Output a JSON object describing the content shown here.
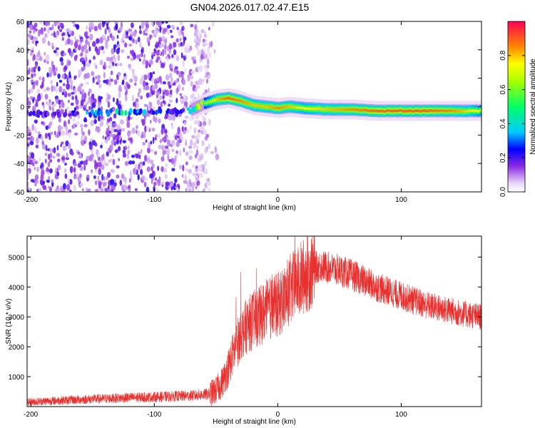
{
  "title": "GN04.2026.017.02.47.E15",
  "chart_data": [
    {
      "type": "heatmap",
      "name": "spectrogram",
      "xlabel": "Height of straight line (km)",
      "ylabel": "Frequency (Hz)",
      "xlim": [
        -203,
        165
      ],
      "ylim": [
        -60,
        60
      ],
      "xticks": [
        -200,
        -100,
        0,
        100
      ],
      "yticks": [
        -60,
        -40,
        -20,
        0,
        20,
        40,
        60
      ],
      "colorbar": {
        "label": "Normalized spectral amplitude",
        "range": [
          0,
          1
        ],
        "ticks": [
          0.0,
          0.2,
          0.4,
          0.6,
          0.8
        ]
      },
      "noise_region_x": [
        -203,
        -55
      ],
      "ridge": {
        "x": [
          -200,
          -180,
          -160,
          -140,
          -120,
          -100,
          -90,
          -80,
          -70,
          -60,
          -50,
          -40,
          -30,
          -20,
          -10,
          0,
          10,
          20,
          40,
          60,
          80,
          100,
          120,
          140,
          160,
          165
        ],
        "freq": [
          -5,
          -5,
          -5,
          -4,
          -4,
          -3,
          -3,
          -3,
          -2,
          2,
          5,
          6,
          4,
          1,
          0,
          -1,
          0,
          -1,
          -2,
          -2,
          -3,
          -3,
          -3,
          -3,
          -3,
          -3
        ],
        "amplitude": [
          0.15,
          0.15,
          0.2,
          0.3,
          0.3,
          0.2,
          0.2,
          0.15,
          0.3,
          0.6,
          0.8,
          0.9,
          0.85,
          0.8,
          0.8,
          0.85,
          0.8,
          0.75,
          0.8,
          0.85,
          0.9,
          0.9,
          0.9,
          0.85,
          0.75,
          0.7
        ]
      }
    },
    {
      "type": "line",
      "name": "snr",
      "xlabel": "Height of straight line (km)",
      "ylabel": "SNR (10 * v/v)",
      "xlim": [
        -203,
        165
      ],
      "ylim": [
        0,
        5700
      ],
      "xticks": [
        -200,
        -100,
        0,
        100
      ],
      "yticks": [
        1000,
        2000,
        3000,
        4000,
        5000
      ],
      "color": "#e8302e",
      "x": [
        -203,
        -180,
        -150,
        -120,
        -100,
        -80,
        -65,
        -55,
        -50,
        -45,
        -40,
        -35,
        -30,
        -25,
        -20,
        -15,
        -10,
        -5,
        0,
        5,
        10,
        15,
        20,
        25,
        30,
        35,
        40,
        50,
        60,
        70,
        80,
        90,
        100,
        110,
        120,
        130,
        140,
        150,
        165
      ],
      "y": [
        150,
        200,
        250,
        300,
        320,
        350,
        380,
        420,
        550,
        800,
        1300,
        1900,
        2400,
        2700,
        2900,
        3000,
        3200,
        3300,
        3400,
        3600,
        3900,
        4100,
        4300,
        4500,
        4650,
        4700,
        4650,
        4550,
        4400,
        4200,
        4000,
        3850,
        3700,
        3550,
        3400,
        3300,
        3200,
        3100,
        3000
      ]
    }
  ]
}
